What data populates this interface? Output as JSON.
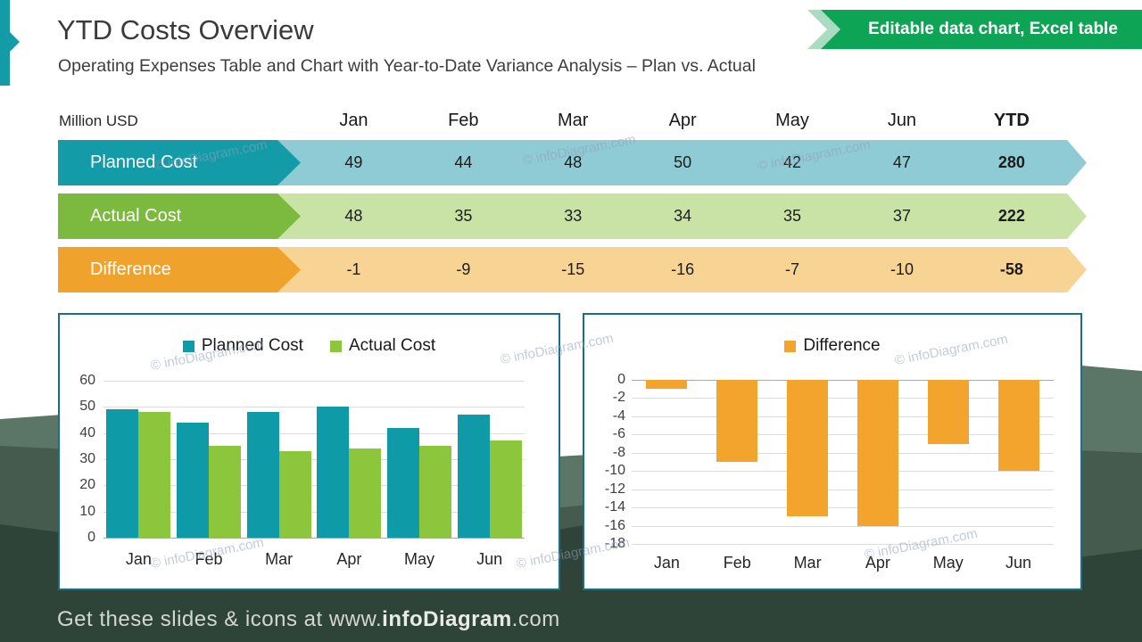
{
  "slide": {
    "title": "YTD Costs Overview",
    "subtitle": "Operating Expenses Table and Chart with Year-to-Date Variance Analysis – Plan vs. Actual",
    "badge": "Editable data chart, Excel table",
    "units_label": "Million USD",
    "watermark": "© infoDiagram.com",
    "footer": {
      "prefix": "Get these slides & icons at www.",
      "brand": "infoDiagram",
      "suffix": ".com"
    }
  },
  "table": {
    "columns": [
      "Jan",
      "Feb",
      "Mar",
      "Apr",
      "May",
      "Jun",
      "YTD"
    ],
    "rows": [
      {
        "label": "Planned Cost",
        "values": [
          49,
          44,
          48,
          50,
          42,
          47
        ],
        "ytd": 280,
        "header_color": "#139BA8",
        "band_color": "#8FCBD4"
      },
      {
        "label": "Actual Cost",
        "values": [
          48,
          35,
          33,
          34,
          35,
          37
        ],
        "ytd": 222,
        "header_color": "#7CB93F",
        "band_color": "#C9E3A7"
      },
      {
        "label": "Difference",
        "values": [
          -1,
          -9,
          -15,
          -16,
          -7,
          -10
        ],
        "ytd": -58,
        "header_color": "#F0A32C",
        "band_color": "#F8D494"
      }
    ]
  },
  "chart_data": [
    {
      "type": "bar",
      "title": "",
      "categories": [
        "Jan",
        "Feb",
        "Mar",
        "Apr",
        "May",
        "Jun"
      ],
      "series": [
        {
          "name": "Planned Cost",
          "values": [
            49,
            44,
            48,
            50,
            42,
            47
          ],
          "color": "#0E9AA7"
        },
        {
          "name": "Actual Cost",
          "values": [
            48,
            35,
            33,
            34,
            35,
            37
          ],
          "color": "#8CC63C"
        }
      ],
      "xlabel": "",
      "ylabel": "",
      "ylim": [
        0,
        60
      ],
      "yticks": [
        0,
        10,
        20,
        30,
        40,
        50,
        60
      ],
      "grid": true,
      "legend_position": "top"
    },
    {
      "type": "bar",
      "title": "",
      "categories": [
        "Jan",
        "Feb",
        "Mar",
        "Apr",
        "May",
        "Jun"
      ],
      "series": [
        {
          "name": "Difference",
          "values": [
            -1,
            -9,
            -15,
            -16,
            -7,
            -10
          ],
          "color": "#F2A42D"
        }
      ],
      "xlabel": "",
      "ylabel": "",
      "ylim": [
        0,
        -18
      ],
      "yticks": [
        0,
        -2,
        -4,
        -6,
        -8,
        -10,
        -12,
        -14,
        -16,
        -18
      ],
      "grid": true,
      "legend_position": "top"
    }
  ],
  "colors": {
    "accent_teal": "#139BA8",
    "badge_green": "#0DA455",
    "badge_chevron": "#A9DCC0",
    "panel_border": "#176F8A"
  }
}
